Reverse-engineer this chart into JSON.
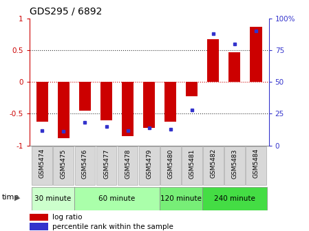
{
  "title": "GDS295 / 6892",
  "samples": [
    "GSM5474",
    "GSM5475",
    "GSM5476",
    "GSM5477",
    "GSM5478",
    "GSM5479",
    "GSM5480",
    "GSM5481",
    "GSM5482",
    "GSM5483",
    "GSM5484"
  ],
  "log_ratio": [
    -0.62,
    -0.88,
    -0.45,
    -0.6,
    -0.85,
    -0.72,
    -0.63,
    -0.22,
    0.67,
    0.47,
    0.87
  ],
  "percentile": [
    12,
    11,
    18,
    15,
    12,
    14,
    13,
    28,
    88,
    80,
    90
  ],
  "bar_color": "#cc0000",
  "dot_color": "#3333cc",
  "ylim": [
    -1.0,
    1.0
  ],
  "yticks_left": [
    -1,
    -0.5,
    0,
    0.5,
    1
  ],
  "ytick_labels_left": [
    "-1",
    "-0.5",
    "0",
    "0.5",
    "1"
  ],
  "yticks_right_vals": [
    0,
    25,
    50,
    75,
    100
  ],
  "ytick_labels_right": [
    "0",
    "25",
    "50",
    "75",
    "100%"
  ],
  "hline_0_color": "#cc0000",
  "hline_05_color": "#333333",
  "groups": [
    {
      "label": "30 minute",
      "start": 0,
      "end": 2,
      "color": "#ccffcc"
    },
    {
      "label": "60 minute",
      "start": 2,
      "end": 6,
      "color": "#aaffaa"
    },
    {
      "label": "120 minute",
      "start": 6,
      "end": 8,
      "color": "#77ee77"
    },
    {
      "label": "240 minute",
      "start": 8,
      "end": 11,
      "color": "#44dd44"
    }
  ],
  "time_label": "time",
  "legend_log_ratio": "log ratio",
  "legend_percentile": "percentile rank within the sample",
  "bg_color": "#ffffff",
  "label_box_color": "#d8d8d8",
  "label_box_edge": "#aaaaaa",
  "bar_width": 0.55
}
